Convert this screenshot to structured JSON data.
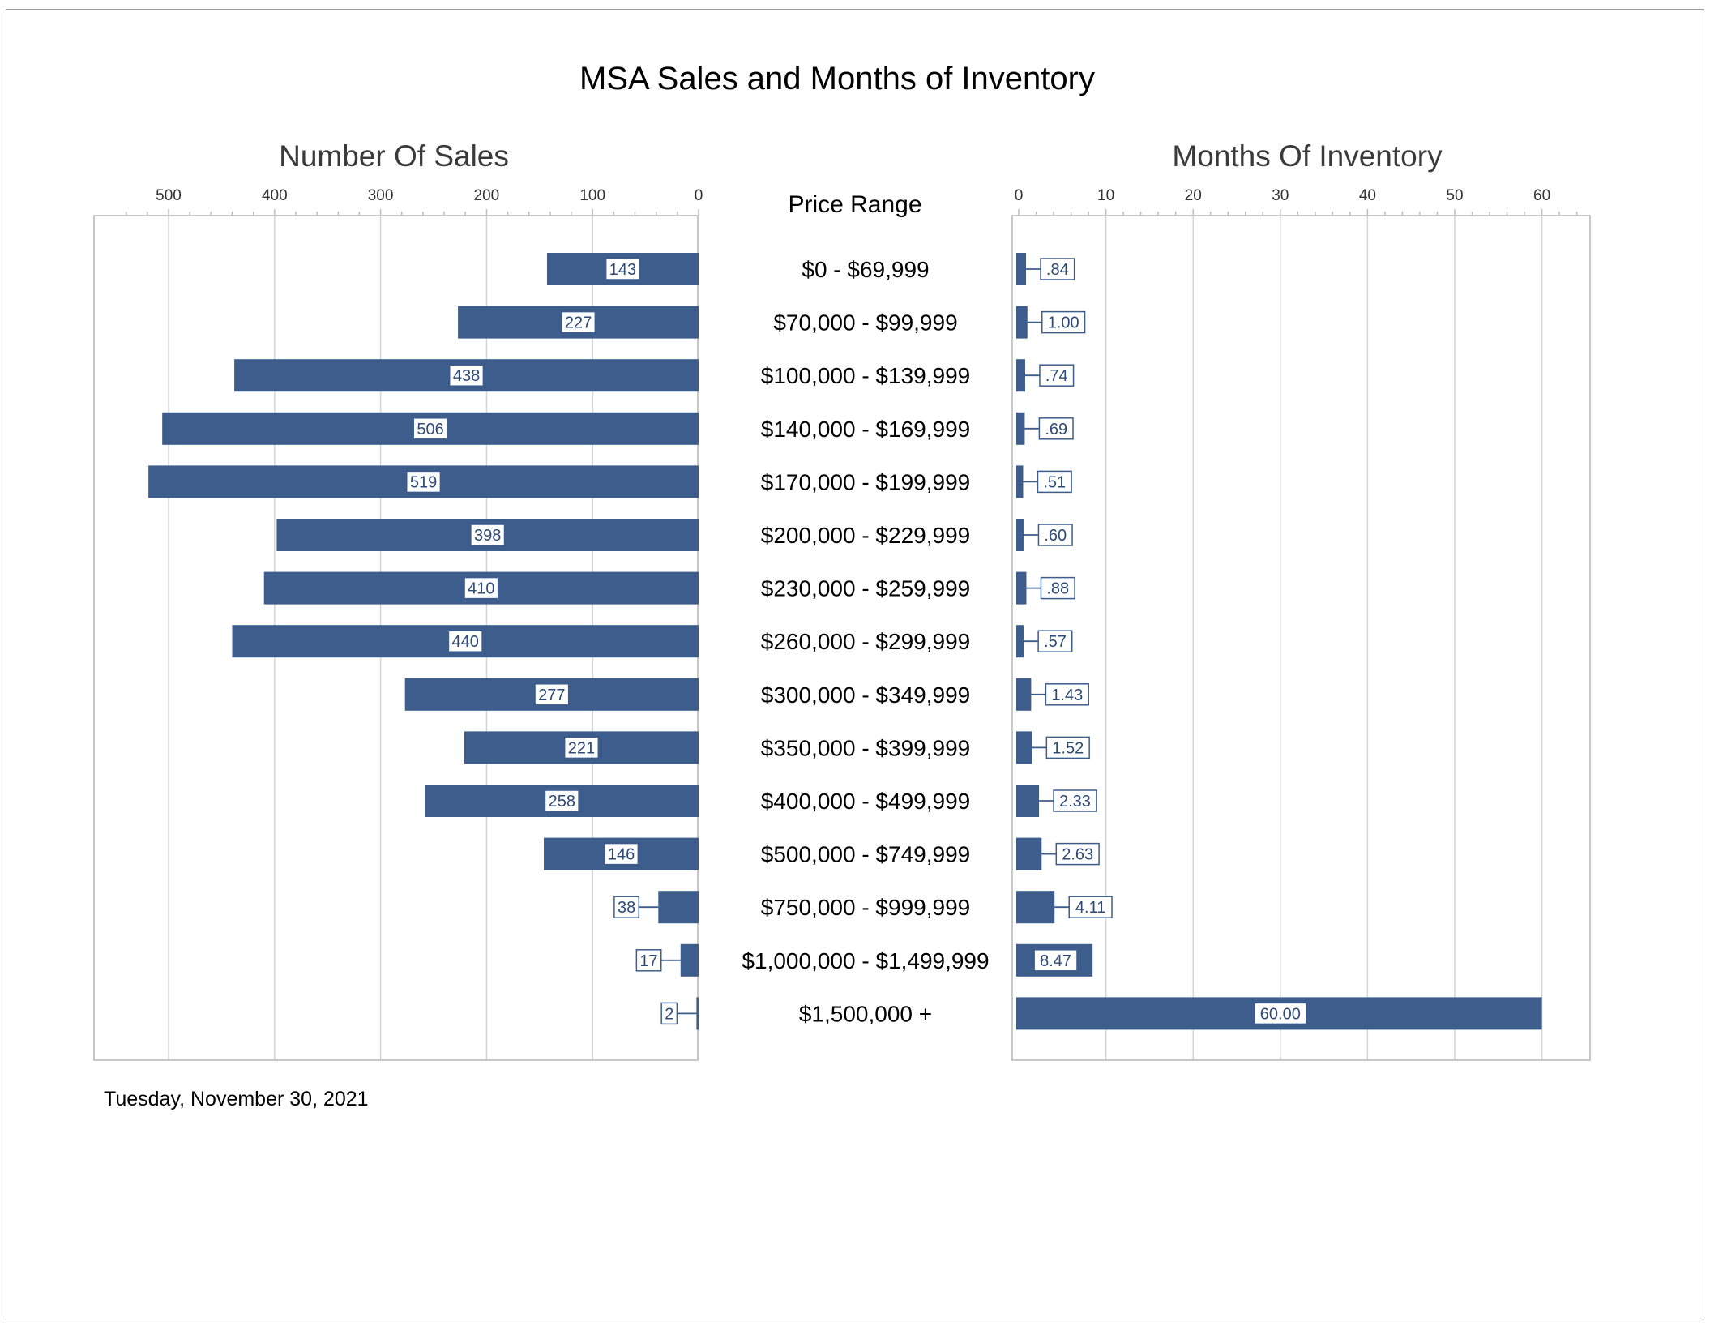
{
  "title": "MSA Sales and Months of Inventory",
  "date": "Tuesday, November 30, 2021",
  "colors": {
    "bar": "#3d5d8c",
    "label_text": "#2e4a76"
  },
  "chart_data": [
    {
      "type": "bar",
      "orientation": "horizontal",
      "direction": "right-to-left",
      "title": "Number Of Sales",
      "xlim": [
        0,
        550
      ],
      "ticks": [
        0,
        100,
        200,
        300,
        400,
        500
      ],
      "grid": true,
      "categories": [
        "$0 - $69,999",
        "$70,000 - $99,999",
        "$100,000 - $139,999",
        "$140,000 - $169,999",
        "$170,000 - $199,999",
        "$200,000 - $229,999",
        "$230,000 - $259,999",
        "$260,000 - $299,999",
        "$300,000 - $349,999",
        "$350,000 - $399,999",
        "$400,000 - $499,999",
        "$500,000 - $749,999",
        "$750,000 - $999,999",
        "$1,000,000 - $1,499,999",
        "$1,500,000 +"
      ],
      "values": [
        143,
        227,
        438,
        506,
        519,
        398,
        410,
        440,
        277,
        221,
        258,
        146,
        38,
        17,
        2
      ],
      "data_labels": [
        "143",
        "227",
        "438",
        "506",
        "519",
        "398",
        "410",
        "440",
        "277",
        "221",
        "258",
        "146",
        "38",
        "17",
        "2"
      ]
    },
    {
      "type": "bar",
      "orientation": "horizontal",
      "title": "Months Of Inventory",
      "xlim": [
        0,
        66
      ],
      "ticks": [
        0,
        10,
        20,
        30,
        40,
        50,
        60
      ],
      "grid": true,
      "categories": [
        "$0 - $69,999",
        "$70,000 - $99,999",
        "$100,000 - $139,999",
        "$140,000 - $169,999",
        "$170,000 - $199,999",
        "$200,000 - $229,999",
        "$230,000 - $259,999",
        "$260,000 - $299,999",
        "$300,000 - $349,999",
        "$350,000 - $399,999",
        "$400,000 - $499,999",
        "$500,000 - $749,999",
        "$750,000 - $999,999",
        "$1,000,000 - $1,499,999",
        "$1,500,000 +"
      ],
      "values": [
        0.84,
        1.0,
        0.74,
        0.69,
        0.51,
        0.6,
        0.88,
        0.57,
        1.43,
        1.52,
        2.33,
        2.63,
        4.11,
        8.47,
        60.0
      ],
      "data_labels": [
        ".84",
        "1.00",
        ".74",
        ".69",
        ".51",
        ".60",
        ".88",
        ".57",
        "1.43",
        "1.52",
        "2.33",
        "2.63",
        "4.11",
        "8.47",
        "60.00"
      ]
    }
  ],
  "category_header": "Price Range"
}
